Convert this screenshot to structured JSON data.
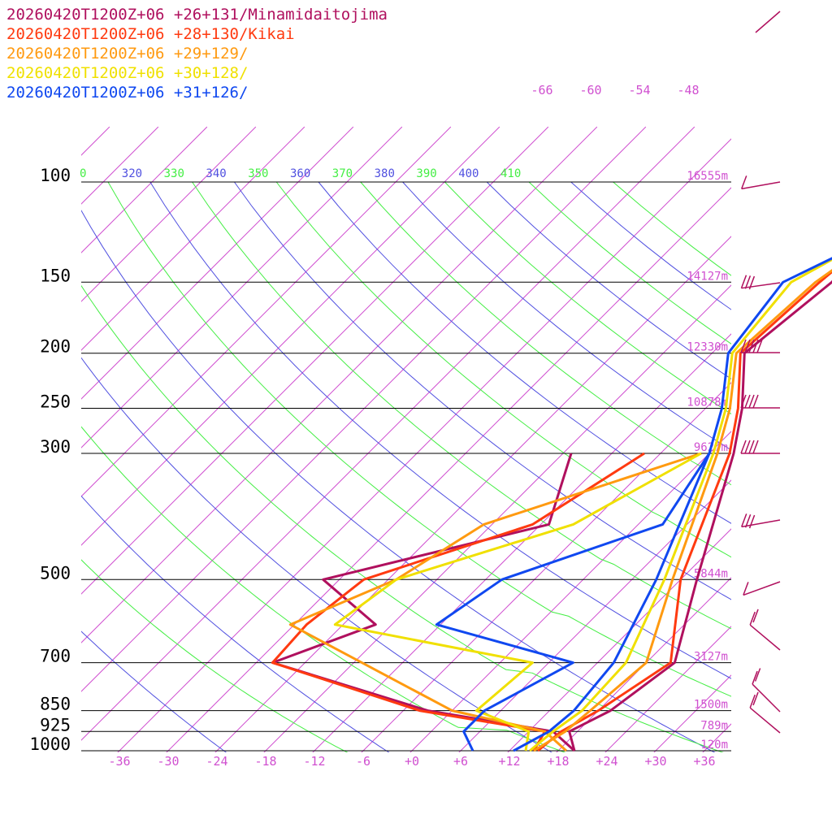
{
  "chart_data": {
    "type": "line",
    "title": "",
    "xlabel": "",
    "ylabel": "",
    "x_unit": "degC",
    "y_scale": "log-pressure",
    "x_ticks": [
      "-36",
      "-30",
      "-24",
      "-18",
      "-12",
      "-6",
      "+0",
      "+6",
      "+12",
      "+18",
      "+24",
      "+30",
      "+36"
    ],
    "pressure_levels": [
      {
        "label": "100",
        "p": 100,
        "height": "16555m"
      },
      {
        "label": "150",
        "p": 150,
        "height": "14127m"
      },
      {
        "label": "200",
        "p": 200,
        "height": "12330m"
      },
      {
        "label": "250",
        "p": 250,
        "height": "10878m"
      },
      {
        "label": "300",
        "p": 300,
        "height": "9627m"
      },
      {
        "label": "500",
        "p": 500,
        "height": "5844m"
      },
      {
        "label": "700",
        "p": 700,
        "height": "3127m"
      },
      {
        "label": "850",
        "p": 850,
        "height": "1500m"
      },
      {
        "label": "925",
        "p": 925,
        "height": "789m"
      },
      {
        "label": "1000",
        "p": 1000,
        "height": "120m"
      }
    ],
    "dry_adiabat_labels": [
      "-66",
      "-60",
      "-54",
      "-48"
    ],
    "theta_labels": [
      {
        "label": "0",
        "color": "#44ee44"
      },
      {
        "label": "320",
        "color": "#5050e0"
      },
      {
        "label": "330",
        "color": "#44ee44"
      },
      {
        "label": "340",
        "color": "#5050e0"
      },
      {
        "label": "350",
        "color": "#44ee44"
      },
      {
        "label": "360",
        "color": "#5050e0"
      },
      {
        "label": "370",
        "color": "#44ee44"
      },
      {
        "label": "380",
        "color": "#5050e0"
      },
      {
        "label": "390",
        "color": "#44ee44"
      },
      {
        "label": "400",
        "color": "#5050e0"
      },
      {
        "label": "410",
        "color": "#44ee44"
      }
    ],
    "series": [
      {
        "name": "20260420T1200Z+06 +26+131/Minamidaitojima",
        "color": "#b0105e",
        "temperature": [
          [
            1000,
            20
          ],
          [
            925,
            17
          ],
          [
            850,
            19.5
          ],
          [
            700,
            21.5
          ],
          [
            500,
            14
          ],
          [
            300,
            3
          ],
          [
            250,
            -1.5
          ],
          [
            200,
            -8
          ],
          [
            150,
            -6
          ],
          [
            100,
            -7
          ]
        ],
        "dewpoint": [
          [
            1000,
            20
          ],
          [
            925,
            15
          ],
          [
            850,
            -3
          ],
          [
            700,
            -28
          ],
          [
            600,
            -20
          ],
          [
            500,
            -32
          ],
          [
            400,
            -11
          ],
          [
            300,
            -17
          ]
        ]
      },
      {
        "name": "20260420T1200Z+06 +28+130/Kikai",
        "color": "#ff3a10",
        "temperature": [
          [
            1000,
            15.5
          ],
          [
            925,
            16
          ],
          [
            850,
            18
          ],
          [
            700,
            21
          ],
          [
            500,
            12
          ],
          [
            300,
            2.5
          ],
          [
            250,
            -2
          ],
          [
            200,
            -8.5
          ],
          [
            150,
            -7.5
          ],
          [
            100,
            -5
          ]
        ],
        "dewpoint": [
          [
            1000,
            15
          ],
          [
            925,
            14
          ],
          [
            850,
            -4
          ],
          [
            700,
            -28
          ],
          [
            600,
            -28.5
          ],
          [
            500,
            -27
          ],
          [
            400,
            -13
          ],
          [
            300,
            -8
          ]
        ]
      },
      {
        "name": "20260420T1200Z+06 +29+129/",
        "color": "#ff9a10",
        "temperature": [
          [
            1000,
            15
          ],
          [
            925,
            16.5
          ],
          [
            850,
            17
          ],
          [
            700,
            18
          ],
          [
            500,
            11
          ],
          [
            300,
            1
          ],
          [
            250,
            -3
          ],
          [
            200,
            -9
          ],
          [
            150,
            -8
          ],
          [
            100,
            -3
          ]
        ],
        "dewpoint": [
          [
            1000,
            19
          ],
          [
            925,
            14
          ],
          [
            850,
            0
          ],
          [
            700,
            -17
          ],
          [
            600,
            -30.5
          ],
          [
            500,
            -23
          ],
          [
            400,
            -19
          ],
          [
            300,
            -1
          ]
        ]
      },
      {
        "name": "20260420T1200Z+06 +30+128/",
        "color": "#f0e000",
        "temperature": [
          [
            1000,
            14.5
          ],
          [
            925,
            15
          ],
          [
            850,
            16
          ],
          [
            700,
            15.5
          ],
          [
            500,
            10
          ],
          [
            300,
            0.5
          ],
          [
            250,
            -3.5
          ],
          [
            200,
            -9.5
          ],
          [
            150,
            -11
          ],
          [
            100,
            -1
          ]
        ],
        "dewpoint": [
          [
            1000,
            14
          ],
          [
            925,
            12
          ],
          [
            850,
            3
          ],
          [
            700,
            4
          ],
          [
            600,
            -25
          ],
          [
            500,
            -23
          ],
          [
            400,
            -8
          ],
          [
            300,
            -1
          ]
        ]
      },
      {
        "name": "20260420T1200Z+06 +31+126/",
        "color": "#1048f0",
        "temperature": [
          [
            1000,
            12.5
          ],
          [
            925,
            14.5
          ],
          [
            850,
            15
          ],
          [
            700,
            14
          ],
          [
            500,
            9
          ],
          [
            300,
            0
          ],
          [
            250,
            -4
          ],
          [
            200,
            -10
          ],
          [
            150,
            -12
          ],
          [
            100,
            1
          ]
        ],
        "dewpoint": [
          [
            1000,
            7.5
          ],
          [
            925,
            4
          ],
          [
            850,
            4
          ],
          [
            700,
            9
          ],
          [
            600,
            -12.5
          ],
          [
            500,
            -10
          ],
          [
            400,
            3
          ],
          [
            300,
            0
          ]
        ]
      }
    ],
    "wind_barbs": [
      {
        "label": "100 hPa"
      },
      {
        "label": "150 hPa"
      },
      {
        "label": "200 hPa"
      },
      {
        "label": "250 hPa"
      },
      {
        "label": "300 hPa"
      },
      {
        "label": "400 hPa"
      },
      {
        "label": "500 hPa"
      },
      {
        "label": "700 hPa"
      },
      {
        "label": "850 hPa"
      },
      {
        "label": "925 hPa"
      }
    ],
    "colors": {
      "isotherm": "#d050d0",
      "dry_adiabat": "#5050e0",
      "moist_adiabat": "#44ee44",
      "isobar": "#000000",
      "barb": "#b0105e"
    }
  }
}
